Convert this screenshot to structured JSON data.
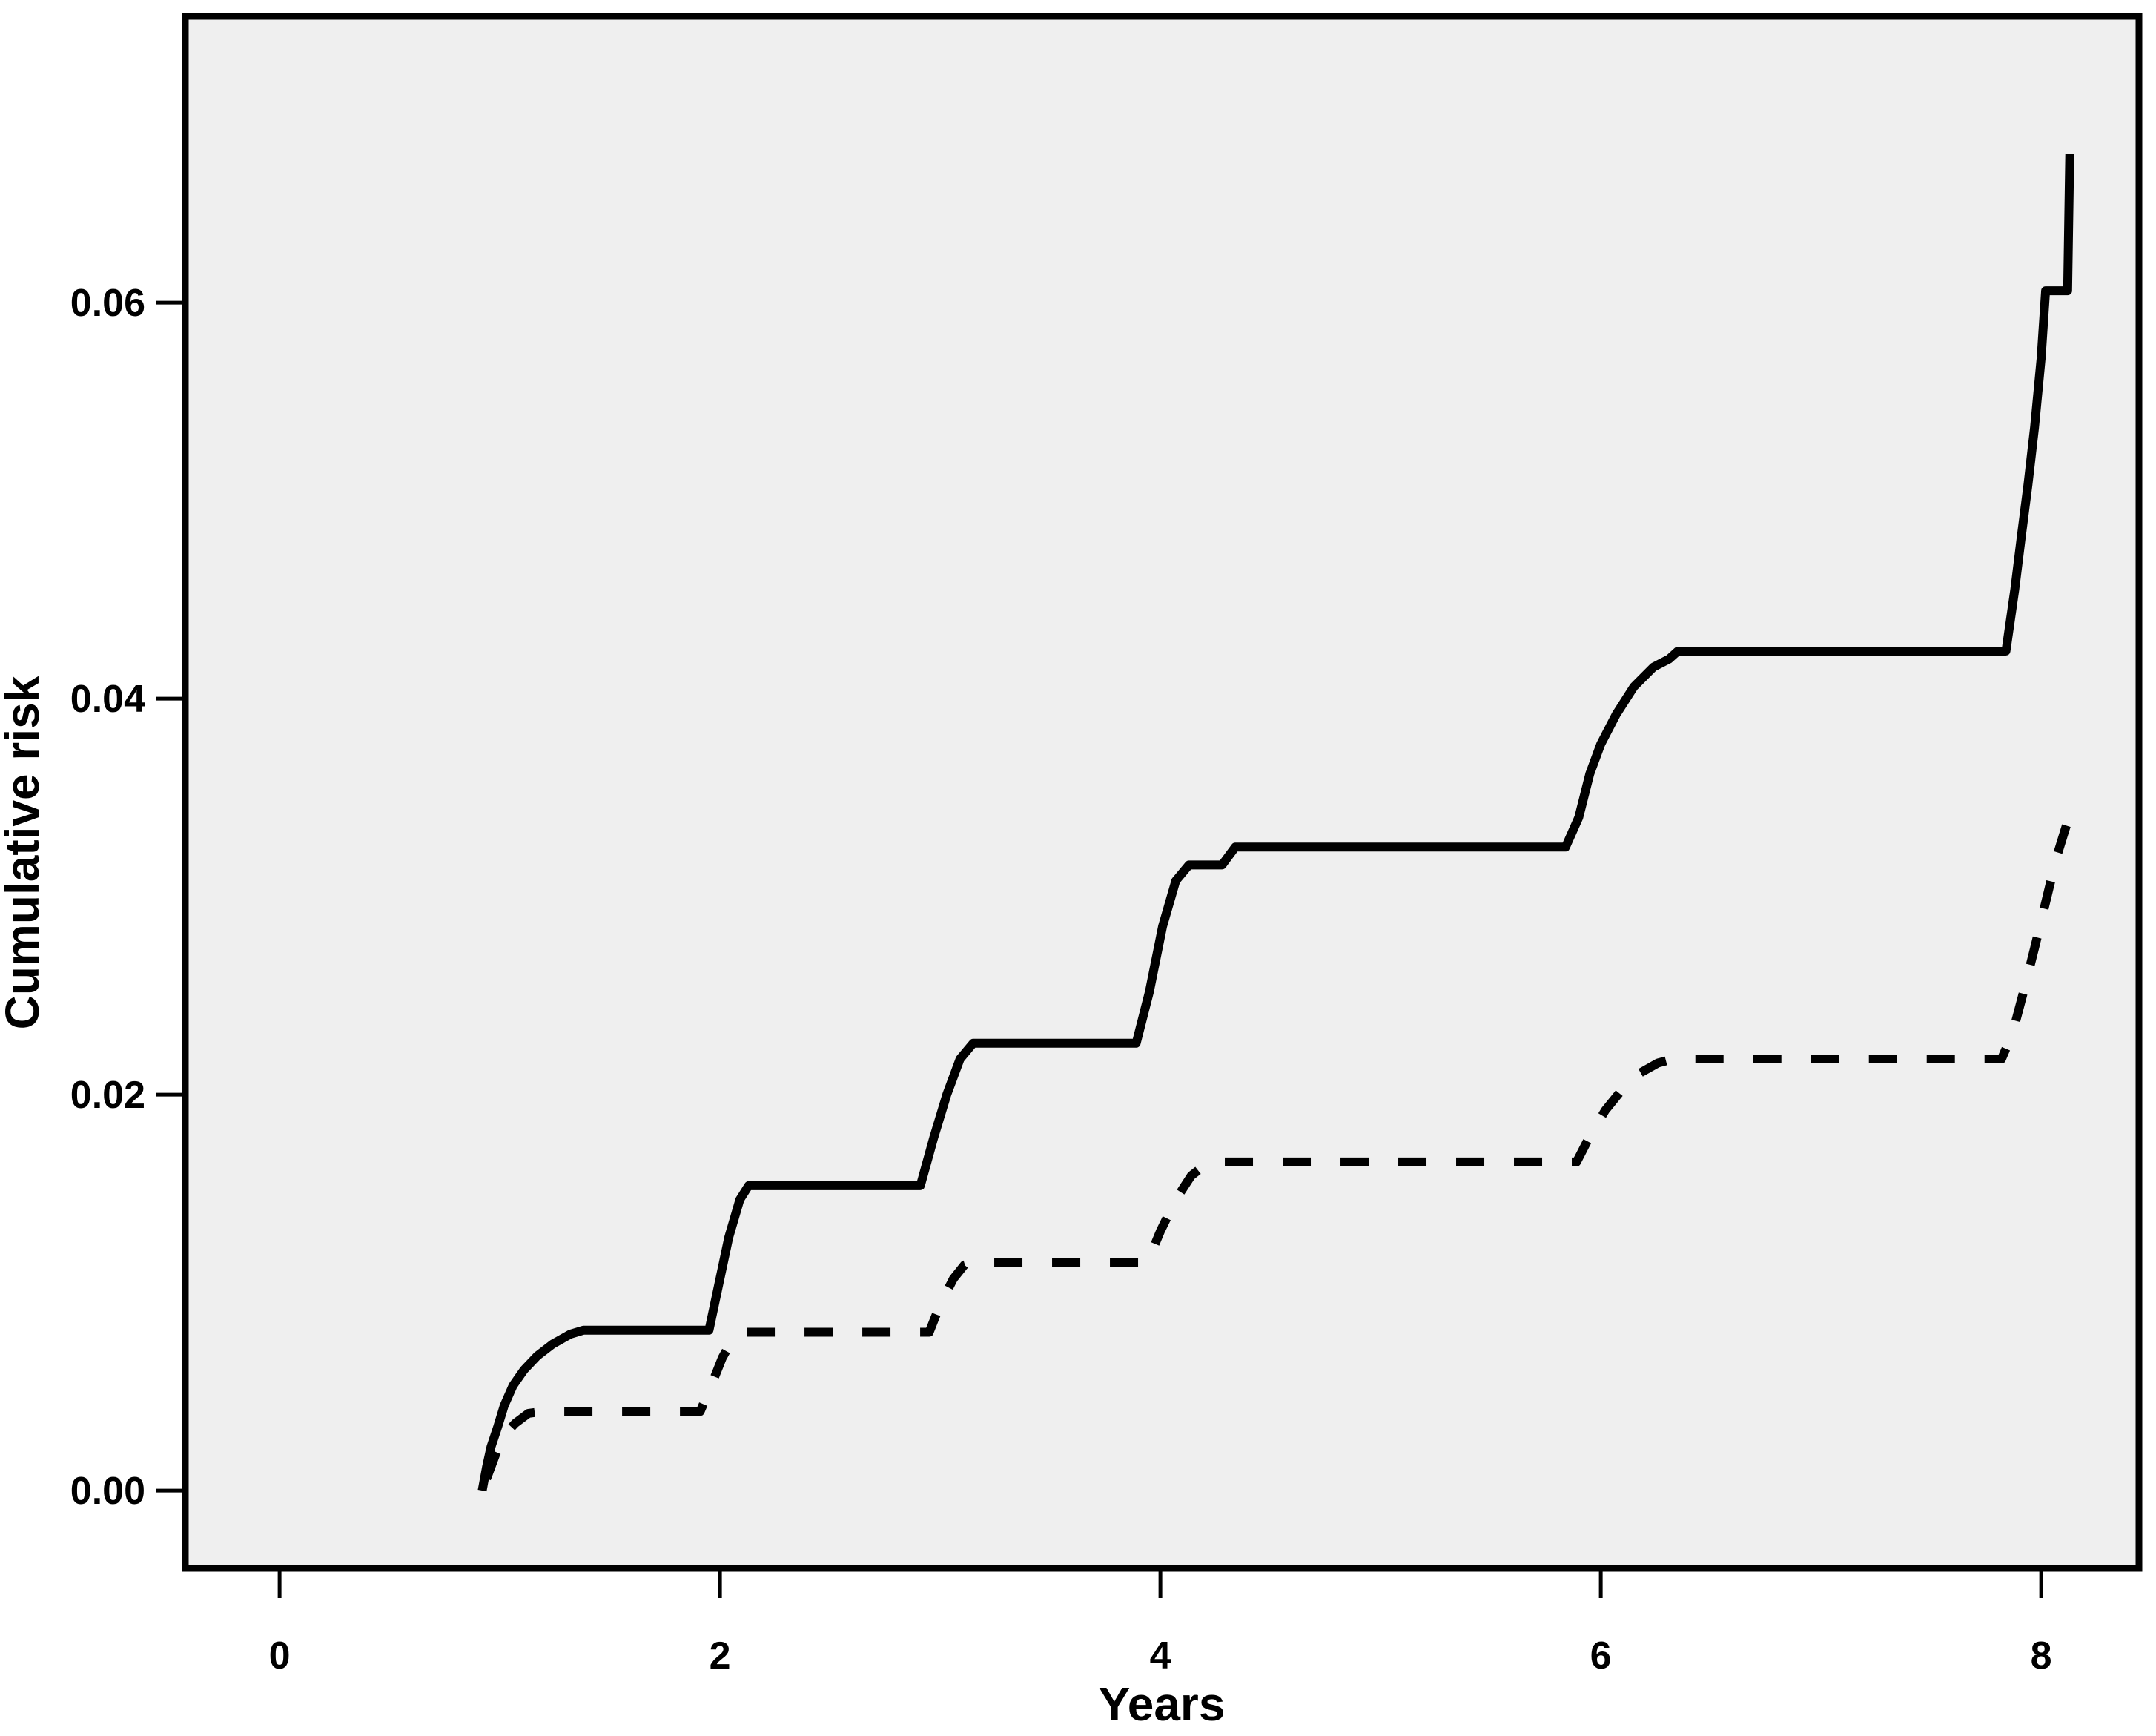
{
  "chart_data": {
    "type": "line",
    "subtype": "cumulative-incidence-step-curves",
    "xlabel": "Years",
    "ylabel": "Cumulative risk",
    "grid": false,
    "legend": "none",
    "plot_bg": "#efefef",
    "frame_color": "#000000",
    "line_color": "#000000",
    "xlim": [
      -0.428,
      8.444
    ],
    "ylim": [
      -0.00393,
      0.07446
    ],
    "x_ticks": [
      {
        "value": 0,
        "label": "0"
      },
      {
        "value": 2,
        "label": "2"
      },
      {
        "value": 4,
        "label": "4"
      },
      {
        "value": 6,
        "label": "6"
      },
      {
        "value": 8,
        "label": "8"
      }
    ],
    "y_ticks": [
      {
        "value": 0.0,
        "label": "0.00"
      },
      {
        "value": 0.02,
        "label": "0.02"
      },
      {
        "value": 0.04,
        "label": "0.04"
      },
      {
        "value": 0.06,
        "label": "0.06"
      }
    ],
    "series": [
      {
        "name": "solid-curve",
        "style": "solid",
        "points": [
          [
            0.92,
            0.0
          ],
          [
            0.94,
            0.0012
          ],
          [
            0.96,
            0.0022
          ],
          [
            0.99,
            0.0032
          ],
          [
            1.02,
            0.0043
          ],
          [
            1.06,
            0.0053
          ],
          [
            1.11,
            0.0061
          ],
          [
            1.17,
            0.0068
          ],
          [
            1.24,
            0.0074
          ],
          [
            1.32,
            0.0079
          ],
          [
            1.38,
            0.0081
          ],
          [
            1.95,
            0.0081
          ],
          [
            1.99,
            0.0102
          ],
          [
            2.04,
            0.0128
          ],
          [
            2.09,
            0.0147
          ],
          [
            2.13,
            0.0154
          ],
          [
            2.91,
            0.0154
          ],
          [
            2.97,
            0.0178
          ],
          [
            3.03,
            0.02
          ],
          [
            3.09,
            0.0218
          ],
          [
            3.15,
            0.0226
          ],
          [
            3.89,
            0.0226
          ],
          [
            3.95,
            0.0252
          ],
          [
            4.01,
            0.0285
          ],
          [
            4.07,
            0.0308
          ],
          [
            4.13,
            0.0316
          ],
          [
            4.28,
            0.0316
          ],
          [
            4.34,
            0.0325
          ],
          [
            5.84,
            0.0325
          ],
          [
            5.9,
            0.034
          ],
          [
            5.95,
            0.0362
          ],
          [
            6.0,
            0.0377
          ],
          [
            6.07,
            0.0392
          ],
          [
            6.15,
            0.0406
          ],
          [
            6.24,
            0.0416
          ],
          [
            6.31,
            0.042
          ],
          [
            6.35,
            0.0424
          ],
          [
            7.84,
            0.0424
          ],
          [
            7.88,
            0.0455
          ],
          [
            7.91,
            0.0482
          ],
          [
            7.94,
            0.0508
          ],
          [
            7.97,
            0.0537
          ],
          [
            8.0,
            0.0572
          ],
          [
            8.02,
            0.0606
          ],
          [
            8.12,
            0.0606
          ],
          [
            8.13,
            0.0675
          ]
        ]
      },
      {
        "name": "dashed-curve",
        "style": "dashed",
        "points": [
          [
            0.94,
            0.0006
          ],
          [
            0.98,
            0.0018
          ],
          [
            1.02,
            0.0028
          ],
          [
            1.07,
            0.0034
          ],
          [
            1.13,
            0.0039
          ],
          [
            1.2,
            0.004
          ],
          [
            1.91,
            0.004
          ],
          [
            1.96,
            0.0053
          ],
          [
            2.01,
            0.0067
          ],
          [
            2.06,
            0.0077
          ],
          [
            2.11,
            0.008
          ],
          [
            2.95,
            0.008
          ],
          [
            3.0,
            0.0094
          ],
          [
            3.06,
            0.0107
          ],
          [
            3.11,
            0.0114
          ],
          [
            3.14,
            0.0115
          ],
          [
            3.94,
            0.0115
          ],
          [
            4.0,
            0.0131
          ],
          [
            4.07,
            0.0147
          ],
          [
            4.14,
            0.0159
          ],
          [
            4.22,
            0.0166
          ],
          [
            5.89,
            0.0166
          ],
          [
            5.95,
            0.0179
          ],
          [
            6.02,
            0.0192
          ],
          [
            6.1,
            0.0203
          ],
          [
            6.18,
            0.0211
          ],
          [
            6.26,
            0.0216
          ],
          [
            6.33,
            0.0218
          ],
          [
            7.82,
            0.0218
          ],
          [
            7.87,
            0.0231
          ],
          [
            7.92,
            0.0252
          ],
          [
            7.97,
            0.0274
          ],
          [
            8.02,
            0.0297
          ],
          [
            8.07,
            0.032
          ],
          [
            8.12,
            0.0338
          ],
          [
            8.16,
            0.0345
          ]
        ]
      }
    ]
  }
}
